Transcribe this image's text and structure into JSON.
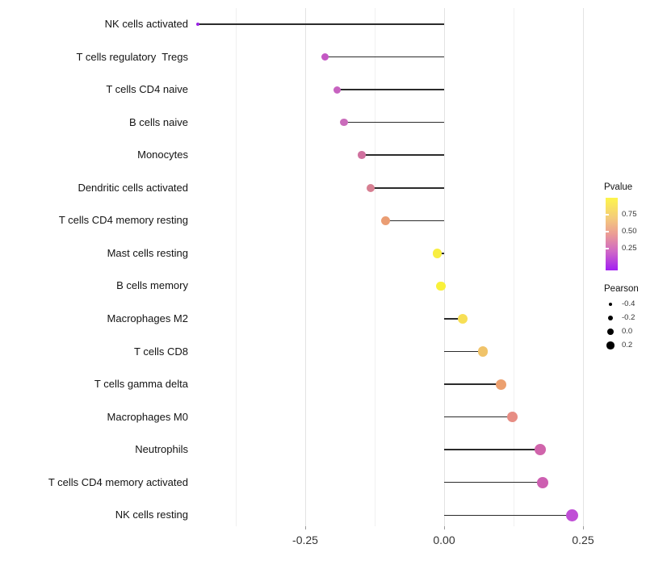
{
  "chart_data": {
    "type": "scatter",
    "variant": "lollipop",
    "title": "",
    "xlabel": "",
    "ylabel": "",
    "x_axis": {
      "tick_labels": [
        "-0.25",
        "0.00",
        "0.25"
      ],
      "tick_values": [
        -0.25,
        0.0,
        0.25
      ],
      "minor_gridline_values": [
        -0.375,
        -0.125,
        0.125
      ],
      "range": [
        -0.455,
        0.28
      ],
      "grid": "vertical-only"
    },
    "points": [
      {
        "label": "NK cells activated",
        "pearson": -0.443,
        "color": "#9a22e4",
        "size": 4
      },
      {
        "label": "T cells regulatory  Tregs",
        "pearson": -0.215,
        "color": "#c458c4",
        "size": 9
      },
      {
        "label": "T cells CD4 naive",
        "pearson": -0.193,
        "color": "#c763c0",
        "size": 9
      },
      {
        "label": "B cells naive",
        "pearson": -0.18,
        "color": "#ca6cbb",
        "size": 9.5
      },
      {
        "label": "Monocytes",
        "pearson": -0.148,
        "color": "#d0719f",
        "size": 9.5
      },
      {
        "label": "Dendritic cells activated",
        "pearson": -0.132,
        "color": "#d77f92",
        "size": 10
      },
      {
        "label": "T cells CD4 memory resting",
        "pearson": -0.106,
        "color": "#ea9d73",
        "size": 11
      },
      {
        "label": "Mast cells resting",
        "pearson": -0.012,
        "color": "#f8ee41",
        "size": 11.5
      },
      {
        "label": "B cells memory",
        "pearson": -0.006,
        "color": "#f9f13a",
        "size": 11.5
      },
      {
        "label": "Macrophages M2",
        "pearson": 0.033,
        "color": "#f7df55",
        "size": 12
      },
      {
        "label": "T cells CD8",
        "pearson": 0.07,
        "color": "#f0c369",
        "size": 12.5
      },
      {
        "label": "T cells gamma delta",
        "pearson": 0.103,
        "color": "#eca06f",
        "size": 13
      },
      {
        "label": "Macrophages M0",
        "pearson": 0.123,
        "color": "#e78d84",
        "size": 13.5
      },
      {
        "label": "Neutrophils",
        "pearson": 0.173,
        "color": "#d064ab",
        "size": 14
      },
      {
        "label": "T cells CD4 memory activated",
        "pearson": 0.178,
        "color": "#cd5fb1",
        "size": 14
      },
      {
        "label": "NK cells resting",
        "pearson": 0.23,
        "color": "#c04ed6",
        "size": 15
      }
    ],
    "legends": {
      "pvalue": {
        "title": "Pvalue",
        "tick_labels": [
          "0.75",
          "0.50",
          "0.25"
        ],
        "gradient_colors_top_to_bottom": [
          "#fdf54b",
          "#f4cb7b",
          "#eb9c95",
          "#cf68c6",
          "#a21ff2"
        ]
      },
      "pearson": {
        "title": "Pearson",
        "items": [
          {
            "label": "-0.4",
            "size": 4.5
          },
          {
            "label": "-0.2",
            "size": 6.5
          },
          {
            "label": "0.0",
            "size": 8.5
          },
          {
            "label": "0.2",
            "size": 9.5
          }
        ]
      }
    }
  }
}
